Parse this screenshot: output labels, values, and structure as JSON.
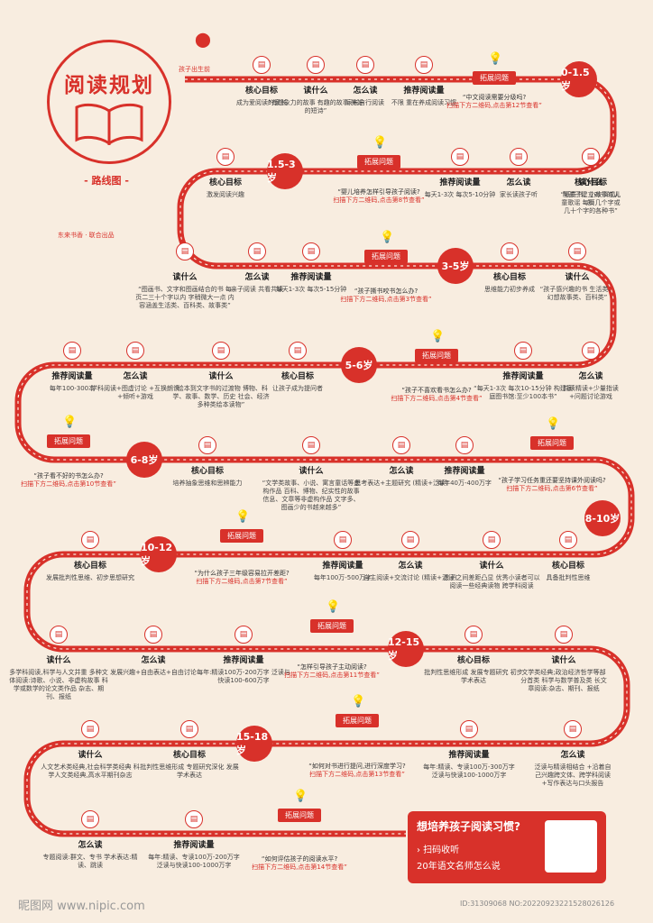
{
  "title": "阅读规划",
  "subtitle": "- 路线图 -",
  "credit": "东来书香 · 联合出品",
  "start_label": "孩子出生前",
  "stops": [
    {
      "key": "a1",
      "head": "核心目标",
      "text": "成为爱阅读的家长"
    },
    {
      "key": "a2",
      "head": "读什么",
      "text": "“有想象力的故事 有趣的故事 美好的短诗”"
    },
    {
      "key": "a3",
      "head": "怎么读",
      "text": "家长自行阅读"
    },
    {
      "key": "a4",
      "head": "推荐阅读量",
      "text": "不限 重在养成阅读习惯"
    },
    {
      "key": "b1",
      "head": "核心目标",
      "text": "帮孩子建立对书的认知"
    },
    {
      "key": "b2",
      "head": "读什么",
      "text": "“纸质书、小故事或儿童歌谣 每页几个字或几十个字的各种书”"
    },
    {
      "key": "b3",
      "head": "怎么读",
      "text": "家长读孩子听"
    },
    {
      "key": "b4",
      "head": "推荐阅读量",
      "text": "每天1-3次 每次5-10分钟"
    },
    {
      "key": "b5",
      "head": "核心目标",
      "text": "激发阅读兴趣"
    },
    {
      "key": "c1",
      "head": "读什么",
      "text": "“图画书、文字和图画结合的书 每页二三十个字以内 字稍微大一点 内容涵盖生活类、百科类、故事类”"
    },
    {
      "key": "c2",
      "head": "怎么读",
      "text": "亲子阅读 共看共读"
    },
    {
      "key": "c3",
      "head": "推荐阅读量",
      "text": "每天1-3次 每次5-15分钟"
    },
    {
      "key": "d1",
      "head": "核心目标",
      "text": "思维能力初步养成"
    },
    {
      "key": "d2",
      "head": "读什么",
      "text": "“孩子感兴趣的书 生活类、幻想故事类、百科类”"
    },
    {
      "key": "e1",
      "head": "推荐阅读量",
      "text": "每年100-300本"
    },
    {
      "key": "e2",
      "head": "怎么读",
      "text": "学科阅读+图虚讨论 +互换朗读+倾听+游戏"
    },
    {
      "key": "e3",
      "head": "读什么",
      "text": "“绘本到文字书的过渡物 博物、科学、故事、数学、历史 社会、经济多种类绘本读物”"
    },
    {
      "key": "e4",
      "head": "核心目标",
      "text": "让孩子成为提问者"
    },
    {
      "key": "e5",
      "head": "推荐阅读量",
      "text": "“每天1-3次 每次10-15分钟 构建家庭图书馆:至少100本书”"
    },
    {
      "key": "e6",
      "head": "怎么读",
      "text": "共读精读+少量指读 +问题讨论游戏"
    },
    {
      "key": "f1",
      "head": "核心目标",
      "text": "培养抽象思维和思辨能力"
    },
    {
      "key": "f2",
      "head": "读什么",
      "text": "“文学类故事、小说、寓言童话等虚构作品 百科、博物、纪实性的故事 信息、文章等非虚构作品 文字多、图画少的书越来越多”"
    },
    {
      "key": "f3",
      "head": "怎么读",
      "text": "思考表达+主题研究 (精读+泛读)"
    },
    {
      "key": "f4",
      "head": "推荐阅读量",
      "text": "每年40万-400万字"
    },
    {
      "key": "g1",
      "head": "核心目标",
      "text": "发展批判性思维、初步思想研究"
    },
    {
      "key": "g2",
      "head": "推荐阅读量",
      "text": "每年100万-500万字"
    },
    {
      "key": "g3",
      "head": "怎么读",
      "text": "自主阅读+交流讨论 (精读+泛读)"
    },
    {
      "key": "g4",
      "head": "读什么",
      "text": "孩子之间差距凸显 优秀小读者可以阅读一些经典读物 跨学科阅读"
    },
    {
      "key": "g5",
      "head": "核心目标",
      "text": "具备批判性思维"
    },
    {
      "key": "h1",
      "head": "读什么",
      "text": "多学科阅读,科学与人文并重 多种文体阅读:诗歌、小说、非虚构故事 科学或数学的论文类作品 杂志、期刊、报纸"
    },
    {
      "key": "h2",
      "head": "怎么读",
      "text": "发展兴趣+自由表达+自由讨论"
    },
    {
      "key": "h3",
      "head": "推荐阅读量",
      "text": "每年:精读100万-200万字 泛读与快读100-600万字"
    },
    {
      "key": "h4",
      "head": "核心目标",
      "text": "批判性思维形成 发展专题研究 初步学术表达"
    },
    {
      "key": "h5",
      "head": "读什么",
      "text": "文学类经典;政治经济哲学等部分首类 科学与数学普及类 长文章阅读:杂志、期刊、报纸"
    },
    {
      "key": "i1",
      "head": "读什么",
      "text": "人文艺术类经典,社会科学类经典 科学人文类经典,高水平期刊杂志"
    },
    {
      "key": "i2",
      "head": "核心目标",
      "text": "批判性思维形成 专题研究深化 发展学术表达"
    },
    {
      "key": "i3",
      "head": "推荐阅读量",
      "text": "每年:精读、专读100万-300万字 泛读与快读100-1000万字"
    },
    {
      "key": "i4",
      "head": "怎么读",
      "text": "泛读与精读相结合 +沿着自己兴趣跨文体、跨学科阅读 +写作表达与口头报告"
    },
    {
      "key": "j1",
      "head": "怎么读",
      "text": "专题阅读:群文、专书 学术表达:精读、跳读"
    },
    {
      "key": "j2",
      "head": "推荐阅读量",
      "text": "每年:精读、专读100万-200万字 泛读与快读100-1000万字"
    }
  ],
  "ages": [
    "0-1.5岁",
    "1.5-3岁",
    "3-5岁",
    "5-6岁",
    "6-8岁",
    "8-10岁",
    "10-12岁",
    "12-15岁",
    "15-18岁"
  ],
  "tag": "拓展问题",
  "questions": [
    {
      "q": "“中文阅读需要分级吗?",
      "l": "扫描下方二维码,点击第12节查看”"
    },
    {
      "q": "“婴儿培养怎样引导孩子阅读?",
      "l": "扫描下方二维码,点击第8节查看”"
    },
    {
      "q": "“孩子撕书咬书怎么办?",
      "l": "扫描下方二维码,点击第3节查看”"
    },
    {
      "q": "“孩子不喜欢看书怎么办?",
      "l": "扫描下方二维码,点击第4节查看”"
    },
    {
      "q": "“孩子看不好的书怎么办?",
      "l": "扫描下方二维码,点击第10节查看”"
    },
    {
      "q": "“孩子学习任务重还要坚持课外阅读吗?",
      "l": "扫描下方二维码,点击第6节查看”"
    },
    {
      "q": "“为什么孩子三年级容易拉开差距?",
      "l": "扫描下方二维码,点击第7节查看”"
    },
    {
      "q": "“怎样引导孩子主动阅读?",
      "l": "扫描下方二维码,点击第11节查看”"
    },
    {
      "q": "“如何对书进行提问,进行深度学习?",
      "l": "扫描下方二维码,点击第13节查看”"
    },
    {
      "q": "“如何评估孩子的阅读水平?",
      "l": "扫描下方二维码,点击第14节查看”"
    }
  ],
  "cta": {
    "title": "想培养孩子阅读习惯?",
    "line1": "› 扫码收听",
    "line2": "20年语文名师怎么说"
  },
  "watermark": "昵图网 www.nipic.com",
  "id_text": "ID:31309068 NO:20220923221528026126",
  "colors": {
    "primary": "#d8312a",
    "bulb": "#f08a24",
    "bg": "#f8ede0"
  },
  "icons": {
    "node": "book-icon",
    "question": "lightbulb-icon",
    "start": "map-pin-icon"
  }
}
